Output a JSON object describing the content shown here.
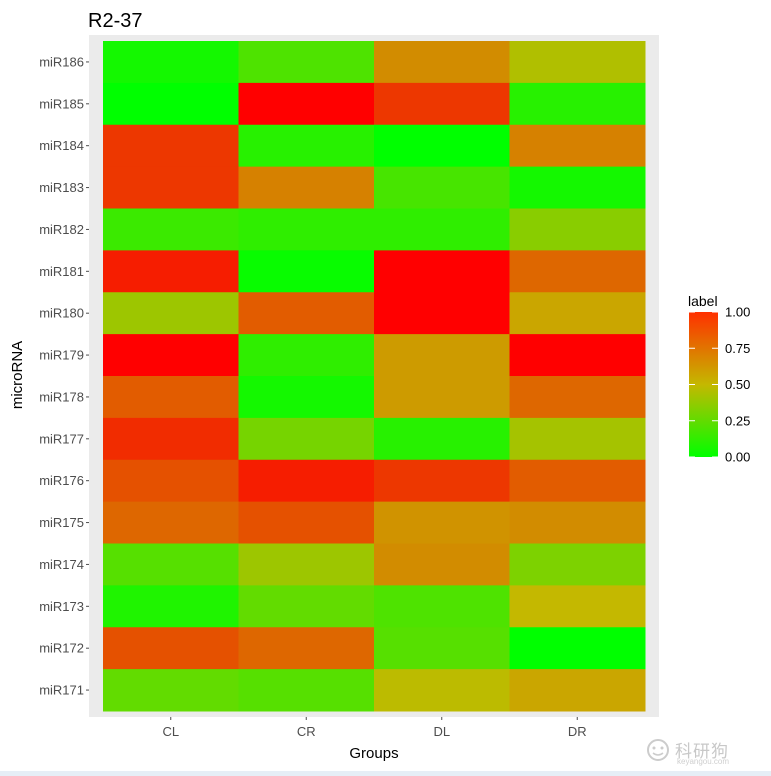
{
  "chart_data": {
    "type": "heatmap",
    "title": "R2-37",
    "xlabel": "Groups",
    "ylabel": "microRNA",
    "x_categories": [
      "CL",
      "CR",
      "DL",
      "DR"
    ],
    "y_categories": [
      "miR186",
      "miR185",
      "miR184",
      "miR183",
      "miR182",
      "miR181",
      "miR180",
      "miR179",
      "miR178",
      "miR177",
      "miR176",
      "miR175",
      "miR174",
      "miR173",
      "miR172",
      "miR171"
    ],
    "values": [
      [
        0.05,
        0.2,
        0.62,
        0.45
      ],
      [
        0.0,
        1.0,
        0.85,
        0.1
      ],
      [
        0.85,
        0.1,
        0.0,
        0.65
      ],
      [
        0.85,
        0.65,
        0.18,
        0.05
      ],
      [
        0.15,
        0.12,
        0.12,
        0.35
      ],
      [
        0.92,
        0.02,
        1.0,
        0.72
      ],
      [
        0.4,
        0.75,
        1.0,
        0.55
      ],
      [
        1.0,
        0.12,
        0.58,
        1.0
      ],
      [
        0.75,
        0.05,
        0.58,
        0.72
      ],
      [
        0.88,
        0.3,
        0.1,
        0.42
      ],
      [
        0.78,
        0.92,
        0.85,
        0.75
      ],
      [
        0.72,
        0.78,
        0.6,
        0.62
      ],
      [
        0.22,
        0.4,
        0.62,
        0.32
      ],
      [
        0.08,
        0.25,
        0.2,
        0.5
      ],
      [
        0.78,
        0.72,
        0.22,
        0.0
      ],
      [
        0.25,
        0.22,
        0.48,
        0.55
      ]
    ],
    "legend": {
      "title": "label",
      "ticks": [
        0.0,
        0.25,
        0.5,
        0.75,
        1.0
      ],
      "tick_labels": [
        "0.00",
        "0.25",
        "0.50",
        "0.75",
        "1.00"
      ],
      "position": "right"
    },
    "color_scale": {
      "low": "#00ff00",
      "mid": "#c4b800",
      "high": "#ff0000"
    },
    "panel_background": "#ebebeb"
  },
  "watermark": {
    "text": "科研狗",
    "sub": "keyangou.com"
  }
}
